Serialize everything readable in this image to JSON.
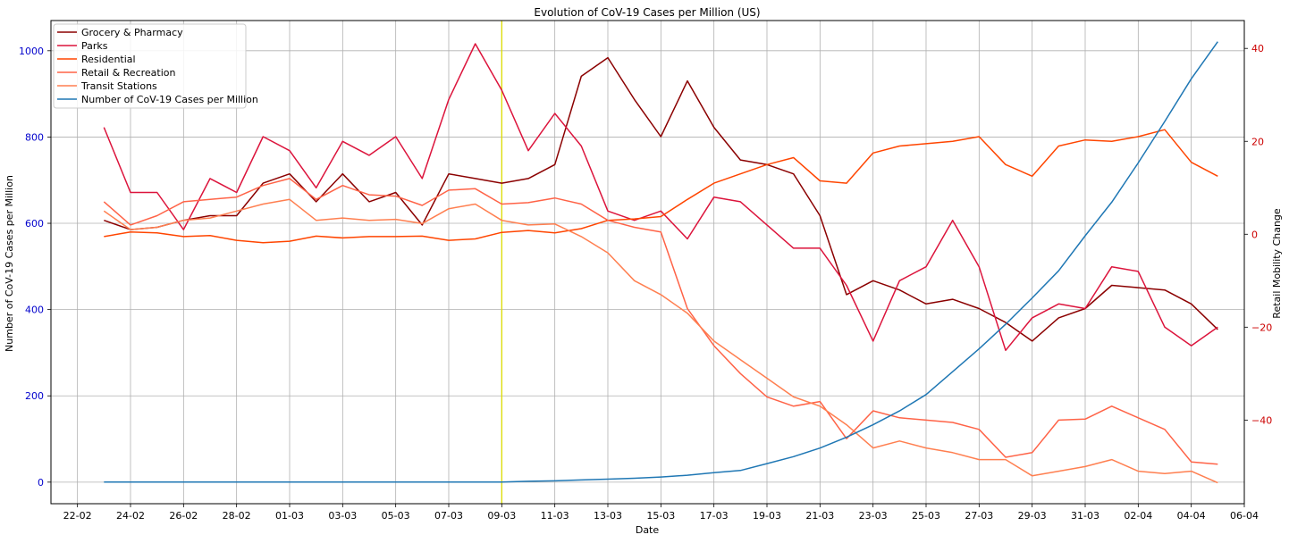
{
  "chart_data": {
    "type": "line",
    "title": "Evolution of CoV-19 Cases per Million (US)",
    "xlabel": "Date",
    "ylabel_left": "Number of CoV-19 Cases per Million",
    "ylabel_right": "Retail Mobility Change",
    "x_start": "2020-02-23",
    "x_ticks": [
      "22-02",
      "24-02",
      "26-02",
      "28-02",
      "01-03",
      "03-03",
      "05-03",
      "07-03",
      "09-03",
      "11-03",
      "13-03",
      "15-03",
      "17-03",
      "19-03",
      "21-03",
      "23-03",
      "25-03",
      "27-03",
      "29-03",
      "31-03",
      "02-04",
      "04-04",
      "06-04"
    ],
    "xlim": [
      "2020-02-21",
      "2020-04-06"
    ],
    "ylim_left": [
      -50,
      1070
    ],
    "ylim_right": [
      -58,
      46
    ],
    "yticks_left": [
      0,
      200,
      400,
      600,
      800,
      1000
    ],
    "yticks_right": [
      -40,
      -20,
      0,
      20,
      40
    ],
    "grid": true,
    "legend_position": "top-left",
    "left_tick_color": "#0000cc",
    "right_tick_color": "#cc0000",
    "vertical_marker": {
      "date": "2020-03-09",
      "color": "#dddd00"
    },
    "series_mobility": [
      {
        "name": "Grocery & Pharmacy",
        "color": "#8b0000",
        "axis": "right",
        "values": [
          3,
          1,
          1.5,
          3,
          4,
          4,
          11,
          13,
          7,
          13,
          7,
          9,
          2,
          13,
          12,
          11,
          12,
          15,
          34,
          38,
          29,
          21,
          33,
          23,
          16,
          15,
          13,
          4,
          -13,
          -10,
          -12,
          -15,
          -14,
          -16,
          -19,
          -23,
          -18,
          -16,
          -11,
          -11.5,
          -12,
          -15,
          -20.5
        ]
      },
      {
        "name": "Parks",
        "color": "#dc143c",
        "axis": "right",
        "values": [
          23,
          9,
          9,
          1,
          12,
          9,
          21,
          18,
          10,
          20,
          17,
          21,
          12,
          29,
          41,
          31,
          18,
          26,
          19,
          5,
          3,
          5,
          -1,
          8,
          7,
          2,
          -3,
          -3,
          -11,
          -23,
          -10,
          -7,
          3,
          -7,
          -25,
          -18,
          -15,
          -16,
          -7,
          -8,
          -20,
          -24,
          -20
        ]
      },
      {
        "name": "Residential",
        "color": "#ff4500",
        "axis": "right",
        "values": [
          -0.5,
          0.5,
          0.3,
          -0.5,
          -0.3,
          -1.3,
          -1.8,
          -1.5,
          -0.4,
          -0.8,
          -0.5,
          -0.5,
          -0.4,
          -1.3,
          -1,
          0.4,
          0.8,
          0.3,
          1.2,
          3,
          3.3,
          3.8,
          7.5,
          11,
          13,
          15,
          16.5,
          11.5,
          11,
          17.5,
          19,
          19.5,
          20,
          21,
          15,
          12.5,
          19,
          20.3,
          20,
          21,
          22.5,
          15.5,
          12.5
        ]
      },
      {
        "name": "Retail & Recreation",
        "color": "#ff6347",
        "axis": "right",
        "values": [
          7,
          2,
          4,
          7,
          7.5,
          8,
          10.5,
          12,
          7.5,
          10.5,
          8.5,
          8.2,
          6.2,
          9.5,
          9.8,
          6.5,
          6.8,
          7.8,
          6.5,
          3,
          1.5,
          0.5,
          -16,
          -24,
          -30,
          -35,
          -37,
          -36,
          -44,
          -38,
          -39.5,
          -40,
          -40.5,
          -42,
          -48,
          -47,
          -40,
          -39.8,
          -37,
          -39.5,
          -42,
          -49,
          -49.5
        ]
      },
      {
        "name": "Transit Stations",
        "color": "#ff7f50",
        "axis": "right",
        "values": [
          5,
          1,
          1.5,
          3,
          3.5,
          5,
          6.5,
          7.5,
          3,
          3.5,
          3,
          3.2,
          2.3,
          5.5,
          6.5,
          3,
          2,
          2.2,
          -0.5,
          -4,
          -10,
          -13,
          -17,
          -23,
          -27,
          -31,
          -35,
          -37,
          -41,
          -46,
          -44.5,
          -46,
          -47,
          -48.5,
          -48.5,
          -52,
          -51,
          -50,
          -48.5,
          -51,
          -51.5,
          -51,
          -53.5
        ]
      }
    ],
    "series_cases": {
      "name": "Number of CoV-19 Cases per Million",
      "color": "#1f77b4",
      "axis": "left",
      "values": [
        0,
        0,
        0,
        0,
        0,
        0,
        0,
        0,
        0,
        0,
        0,
        0,
        0,
        0,
        0,
        0,
        2,
        3,
        5,
        7,
        9,
        12,
        16,
        22,
        27,
        43,
        59,
        79,
        104,
        133,
        165,
        203,
        256,
        309,
        366,
        427,
        490,
        571,
        649,
        740,
        836,
        935,
        1021
      ]
    }
  }
}
